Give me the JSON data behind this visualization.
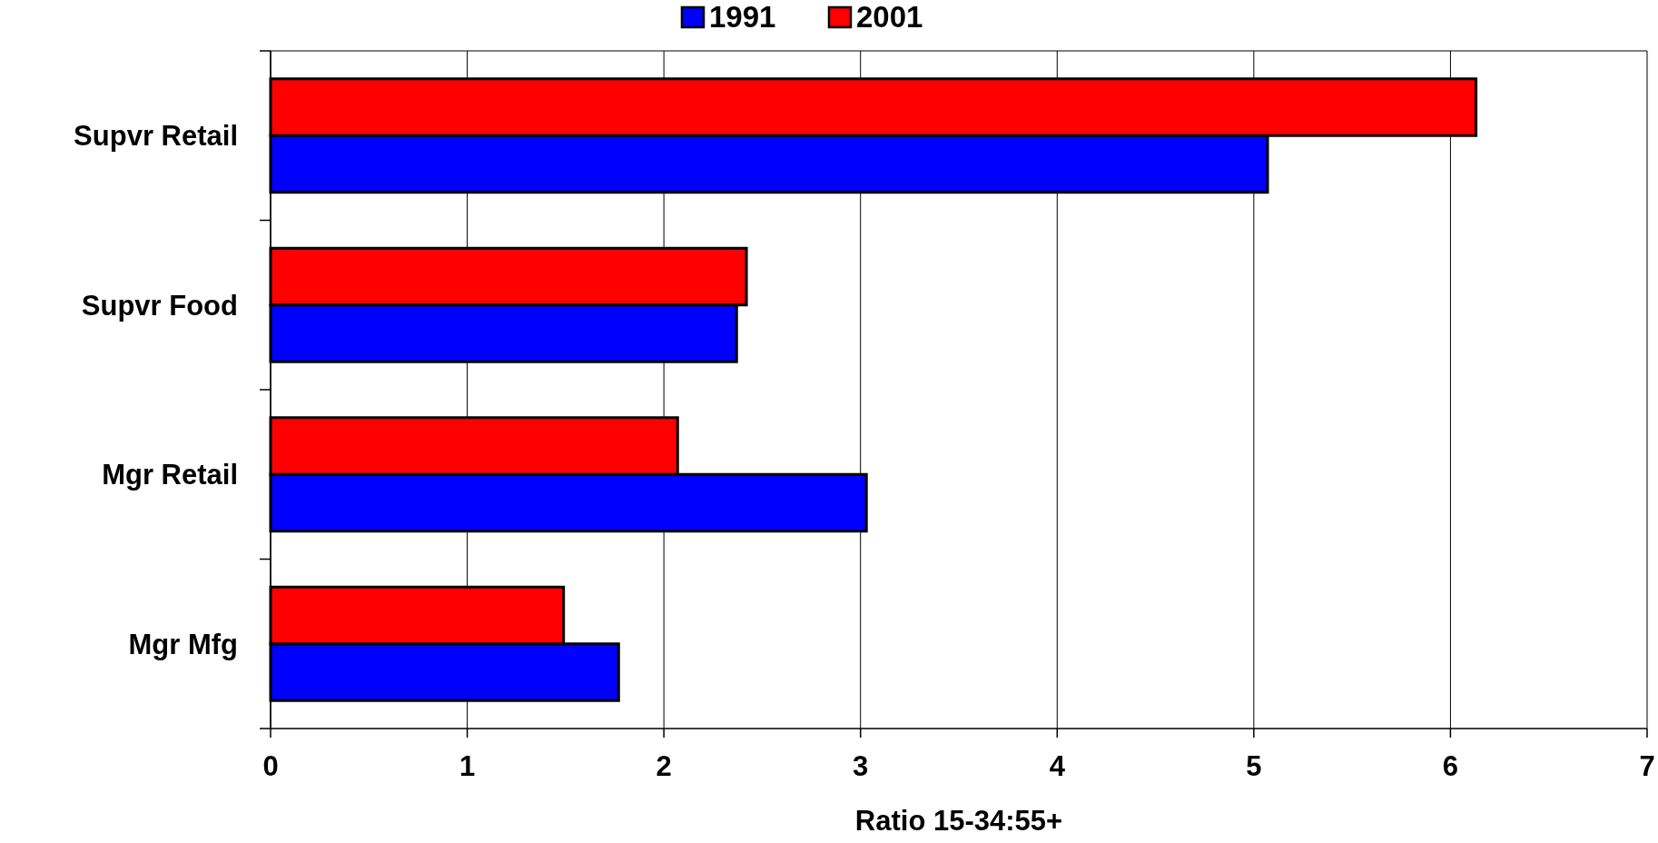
{
  "chart_data": {
    "type": "bar",
    "orientation": "horizontal",
    "xlabel": "Ratio 15-34:55+",
    "categories": [
      "Supvr Retail",
      "Supvr Food",
      "Mgr Retail",
      "Mgr Mfg"
    ],
    "series": [
      {
        "name": "1991",
        "color": "#0000ff",
        "values": [
          5.07,
          2.37,
          3.03,
          1.77
        ]
      },
      {
        "name": "2001",
        "color": "#ff0000",
        "values": [
          6.13,
          2.42,
          2.07,
          1.49
        ]
      }
    ],
    "xlim": [
      0,
      7
    ],
    "xticks": [
      0,
      1,
      2,
      3,
      4,
      5,
      6,
      7
    ],
    "grid": "x",
    "legend": "top"
  }
}
